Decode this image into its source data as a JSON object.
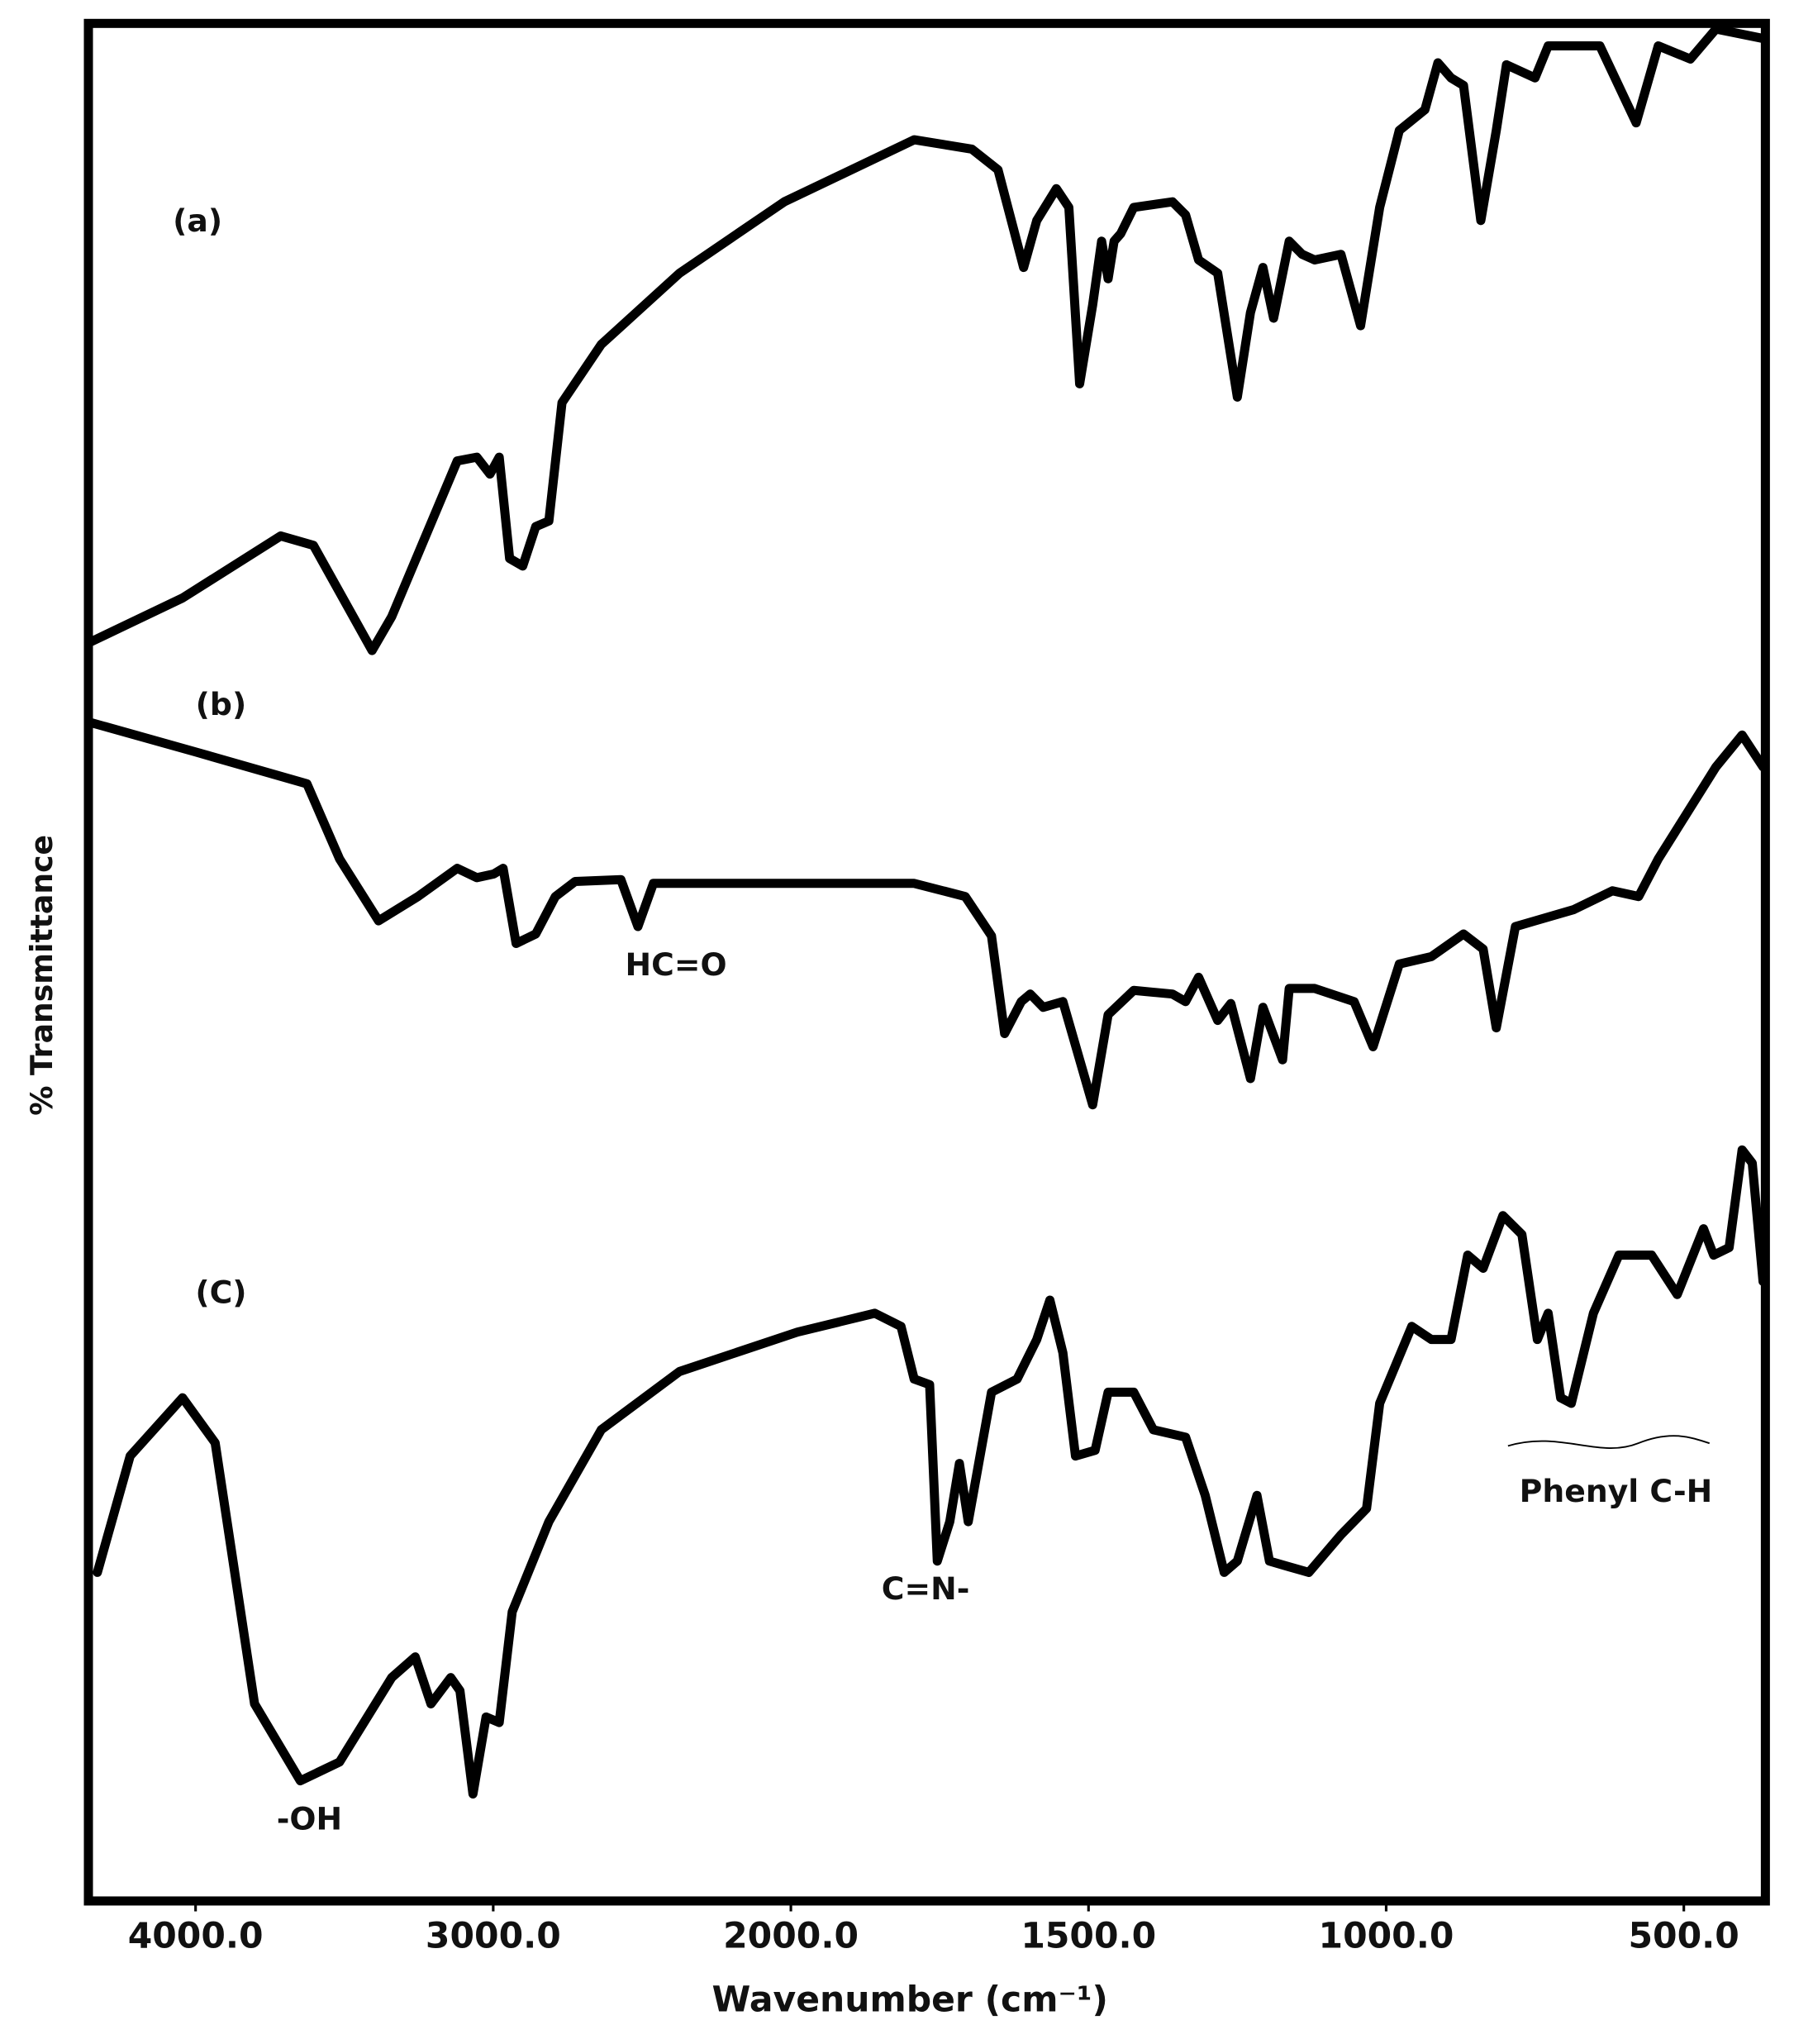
{
  "chart_data": {
    "type": "line",
    "x_label": "Wavenumber (cm⁻¹)",
    "y_label": "% Transmittance",
    "xlim": [
      4360,
      363
    ],
    "ylim": [
      0,
      100
    ],
    "x_break": 2000,
    "x_break_ratio": 2,
    "xticks": [
      {
        "value": 4000,
        "label": "4000.0"
      },
      {
        "value": 3000,
        "label": "3000.0"
      },
      {
        "value": 2000,
        "label": "2000.0"
      },
      {
        "value": 1500,
        "label": "1500.0"
      },
      {
        "value": 1000,
        "label": "1000.0"
      },
      {
        "value": 500,
        "label": "500.0"
      }
    ],
    "annotations": [
      "(a)",
      "(b)",
      "(C)",
      "HC=O",
      "C=N-",
      "-OH",
      "Phenyl C-H"
    ],
    "series": [
      {
        "color": "#000000",
        "x": [
          4360,
          4044,
          3714,
          3604,
          3407,
          3341,
          3121,
          3055,
          3011,
          2980,
          2945,
          2901,
          2857,
          2813,
          2769,
          2637,
          2374,
          2022,
          1793,
          1696,
          1652,
          1609,
          1587,
          1554,
          1533,
          1515,
          1493,
          1478,
          1467,
          1457,
          1446,
          1424,
          1359,
          1337,
          1315,
          1283,
          1250,
          1228,
          1207,
          1189,
          1163,
          1141,
          1120,
          1076,
          1043,
          1011,
          978,
          935,
          913,
          891,
          870,
          841,
          815,
          798,
          750,
          728,
          685,
          641,
          580,
          543,
          489,
          446,
          367
        ],
        "values": [
          67.0,
          69.4,
          72.7,
          72.2,
          66.6,
          68.4,
          76.7,
          76.9,
          76.0,
          76.9,
          71.5,
          71.1,
          73.2,
          73.5,
          79.8,
          82.9,
          86.7,
          90.5,
          93.8,
          93.3,
          92.2,
          87.0,
          89.5,
          91.2,
          90.2,
          80.8,
          85.0,
          88.4,
          86.4,
          88.4,
          88.8,
          90.2,
          90.5,
          89.8,
          87.4,
          86.7,
          80.1,
          84.6,
          87.0,
          84.3,
          88.4,
          87.7,
          87.4,
          87.7,
          83.9,
          90.2,
          94.3,
          95.4,
          97.9,
          97.1,
          96.7,
          89.5,
          94.3,
          97.8,
          97.1,
          98.8,
          98.8,
          98.8,
          94.7,
          98.8,
          98.1,
          99.7,
          99.2
        ]
      },
      {
        "color": "#000000",
        "x": [
          4360,
          4000,
          3626,
          3516,
          3385,
          3253,
          3121,
          3055,
          2998,
          2967,
          2923,
          2857,
          2791,
          2725,
          2571,
          2514,
          2462,
          2022,
          1793,
          1707,
          1663,
          1641,
          1613,
          1598,
          1576,
          1543,
          1493,
          1467,
          1424,
          1359,
          1337,
          1315,
          1283,
          1261,
          1228,
          1207,
          1174,
          1163,
          1120,
          1054,
          1022,
          978,
          924,
          870,
          837,
          815,
          783,
          750,
          685,
          620,
          576,
          543,
          446,
          402,
          367
        ],
        "values": [
          62.8,
          61.2,
          59.5,
          55.5,
          52.2,
          53.5,
          55.0,
          54.5,
          54.7,
          55.0,
          51.0,
          51.5,
          53.5,
          54.3,
          54.4,
          51.9,
          54.2,
          54.2,
          54.2,
          53.5,
          51.4,
          46.2,
          47.9,
          48.3,
          47.6,
          47.9,
          42.4,
          47.2,
          48.5,
          48.3,
          47.9,
          49.2,
          46.9,
          47.8,
          43.8,
          47.6,
          44.8,
          48.6,
          48.6,
          47.9,
          45.5,
          49.9,
          50.3,
          51.5,
          50.7,
          46.5,
          51.9,
          52.2,
          52.8,
          53.8,
          53.5,
          55.5,
          60.4,
          62.1,
          60.4
        ]
      },
      {
        "color": "#000000",
        "x": [
          4330,
          4220,
          4044,
          3934,
          3802,
          3648,
          3516,
          3341,
          3262,
          3209,
          3143,
          3112,
          3068,
          3024,
          2980,
          2936,
          2813,
          2637,
          2374,
          1989,
          1859,
          1815,
          1793,
          1767,
          1754,
          1733,
          1717,
          1702,
          1663,
          1620,
          1587,
          1565,
          1543,
          1522,
          1489,
          1467,
          1424,
          1391,
          1337,
          1304,
          1272,
          1250,
          1217,
          1196,
          1163,
          1130,
          1076,
          1033,
          1011,
          957,
          924,
          891,
          863,
          837,
          804,
          772,
          746,
          728,
          707,
          689,
          652,
          609,
          554,
          511,
          467,
          450,
          424,
          402,
          385,
          367
        ],
        "values": [
          17.5,
          23.7,
          26.8,
          24.4,
          10.5,
          6.4,
          7.4,
          11.9,
          13.0,
          10.5,
          11.9,
          11.2,
          5.7,
          9.8,
          9.5,
          15.4,
          20.2,
          25.1,
          28.2,
          30.3,
          31.3,
          30.6,
          27.8,
          27.5,
          18.1,
          20.2,
          23.3,
          20.2,
          27.1,
          27.8,
          29.9,
          32.0,
          29.2,
          23.7,
          24.0,
          27.1,
          27.1,
          25.1,
          24.7,
          21.6,
          17.5,
          18.1,
          21.6,
          18.1,
          17.8,
          17.5,
          19.5,
          20.9,
          26.5,
          30.6,
          29.9,
          29.9,
          34.4,
          33.7,
          36.5,
          35.5,
          29.9,
          31.3,
          26.8,
          26.5,
          31.3,
          34.4,
          34.4,
          32.3,
          35.8,
          34.4,
          34.8,
          40.0,
          39.3,
          33.0
        ]
      }
    ]
  }
}
